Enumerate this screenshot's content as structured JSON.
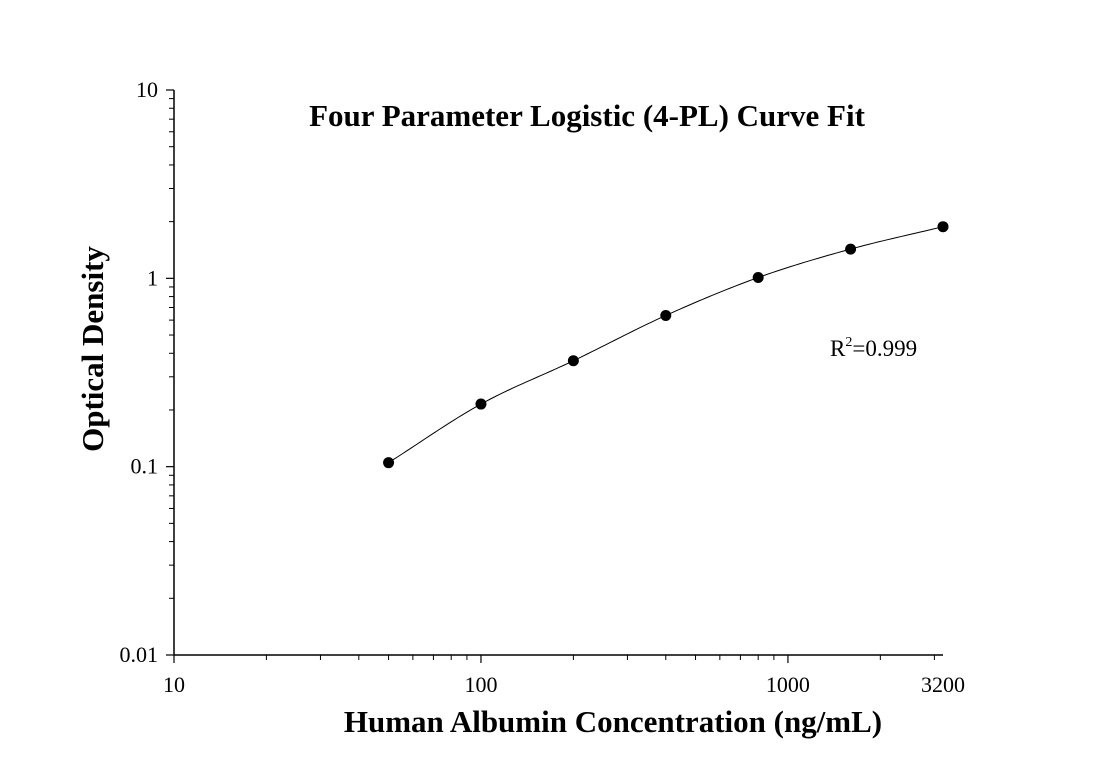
{
  "chart_data": {
    "type": "scatter",
    "title": "Four Parameter Logistic (4-PL) Curve Fit",
    "xlabel": "Human Albumin Concentration (ng/mL)",
    "ylabel": "Optical Density",
    "x_scale": "log",
    "y_scale": "log",
    "xlim": [
      10,
      3200
    ],
    "ylim": [
      0.01,
      10
    ],
    "x_ticks": [
      {
        "value": 10,
        "label": "10"
      },
      {
        "value": 100,
        "label": "100"
      },
      {
        "value": 1000,
        "label": "1000"
      },
      {
        "value": 3200,
        "label": "3200"
      }
    ],
    "y_ticks": [
      {
        "value": 0.01,
        "label": "0.01"
      },
      {
        "value": 0.1,
        "label": "0.1"
      },
      {
        "value": 1,
        "label": "1"
      },
      {
        "value": 10,
        "label": "10"
      }
    ],
    "grid": false,
    "series": [
      {
        "points": [
          {
            "x": 50,
            "y": 0.105
          },
          {
            "x": 100,
            "y": 0.215
          },
          {
            "x": 200,
            "y": 0.365
          },
          {
            "x": 400,
            "y": 0.635
          },
          {
            "x": 800,
            "y": 1.01
          },
          {
            "x": 1600,
            "y": 1.43
          },
          {
            "x": 3200,
            "y": 1.88
          }
        ],
        "marker": "filled-circle",
        "color": "#000000",
        "fit_curve": true
      }
    ],
    "annotation": {
      "base": "R",
      "superscript": "2",
      "rest": "=0.999"
    }
  }
}
